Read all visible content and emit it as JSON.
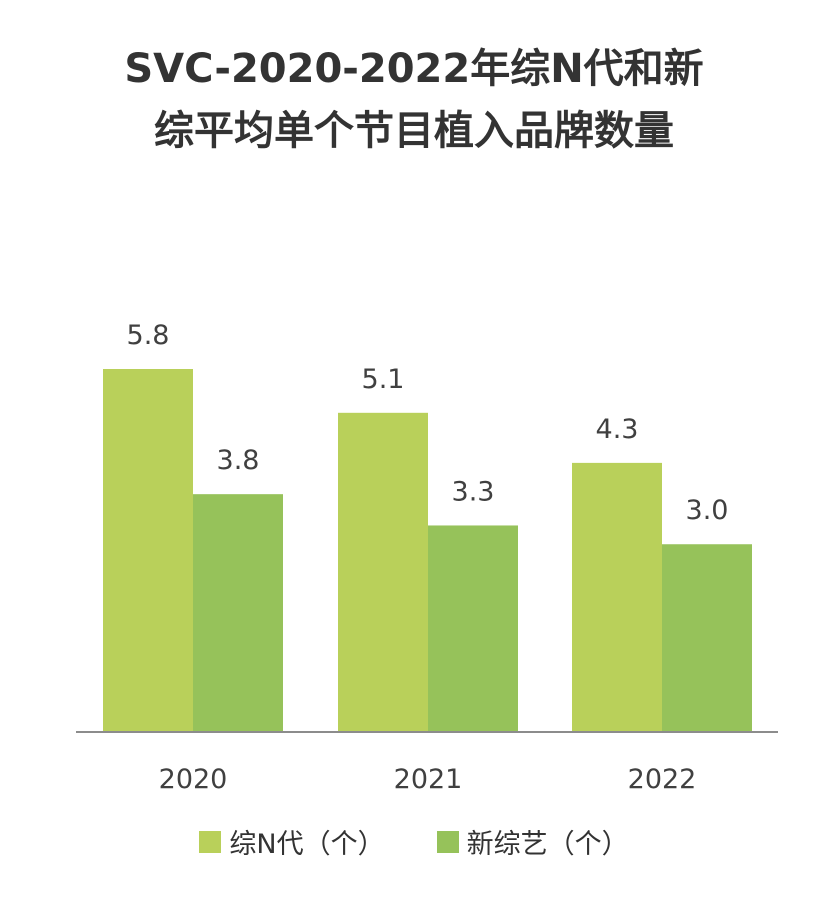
{
  "colors": {
    "series1": "#b9d05a",
    "series2": "#96c25a",
    "axis": "#8c8c8c",
    "text": "#333333",
    "label": "#404040"
  },
  "chart_data": {
    "type": "bar",
    "title": "SVC-2020-2022年综N代和新综平均单个节目植入品牌数量",
    "title_lines": [
      "SVC-2020-2022年综N代和新",
      "综平均单个节目植入品牌数量"
    ],
    "categories": [
      "2020",
      "2021",
      "2022"
    ],
    "series": [
      {
        "name": "综N代（个）",
        "values": [
          5.8,
          5.1,
          4.3
        ],
        "labels": [
          "5.8",
          "5.1",
          "4.3"
        ]
      },
      {
        "name": "新综艺（个）",
        "values": [
          3.8,
          3.3,
          3.0
        ],
        "labels": [
          "3.8",
          "3.3",
          "3.0"
        ]
      }
    ],
    "ylim": [
      0,
      5.8
    ],
    "grid": false,
    "legend": "bottom",
    "xlabel": "",
    "ylabel": ""
  }
}
